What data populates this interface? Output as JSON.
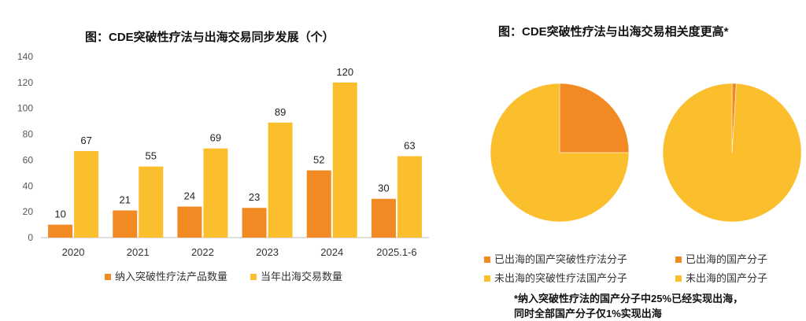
{
  "colors": {
    "orange": "#F28A24",
    "yellow": "#FBBF2E",
    "axis": "#BFBFBF"
  },
  "left": {
    "title": "图：CDE突破性疗法与出海交易同步发展（个）",
    "legend": [
      "纳入突破性疗法产品数量",
      "当年出海交易数量"
    ]
  },
  "right": {
    "title": "图：CDE突破性疗法与出海交易相关度更高*",
    "legend": [
      "已出海的国产突破性疗法分子",
      "已出海的国产分子",
      "未出海的突破性疗法国产分子",
      "未出海的国产分子"
    ],
    "note": [
      "*纳入突破性疗法的国产分子中25%已经实现出海，",
      "同时全部国产分子仅1%实现出海"
    ]
  },
  "chart_data": [
    {
      "type": "bar",
      "title": "图：CDE突破性疗法与出海交易同步发展（个）",
      "categories": [
        "2020",
        "2021",
        "2022",
        "2023",
        "2024",
        "2025.1-6"
      ],
      "series": [
        {
          "name": "纳入突破性疗法产品数量",
          "values": [
            10,
            21,
            24,
            23,
            52,
            30
          ]
        },
        {
          "name": "当年出海交易数量",
          "values": [
            67,
            55,
            69,
            89,
            120,
            63
          ]
        }
      ],
      "ylim": [
        0,
        140
      ],
      "yticks": [
        0,
        20,
        40,
        60,
        80,
        100,
        120,
        140
      ],
      "grid": false,
      "legend": "bottom"
    },
    {
      "type": "pie",
      "slices": [
        {
          "name": "已出海的国产突破性疗法分子",
          "value": 25
        },
        {
          "name": "未出海的突破性疗法国产分子",
          "value": 75
        }
      ]
    },
    {
      "type": "pie",
      "slices": [
        {
          "name": "已出海的国产分子",
          "value": 1
        },
        {
          "name": "未出海的国产分子",
          "value": 99
        }
      ]
    }
  ]
}
